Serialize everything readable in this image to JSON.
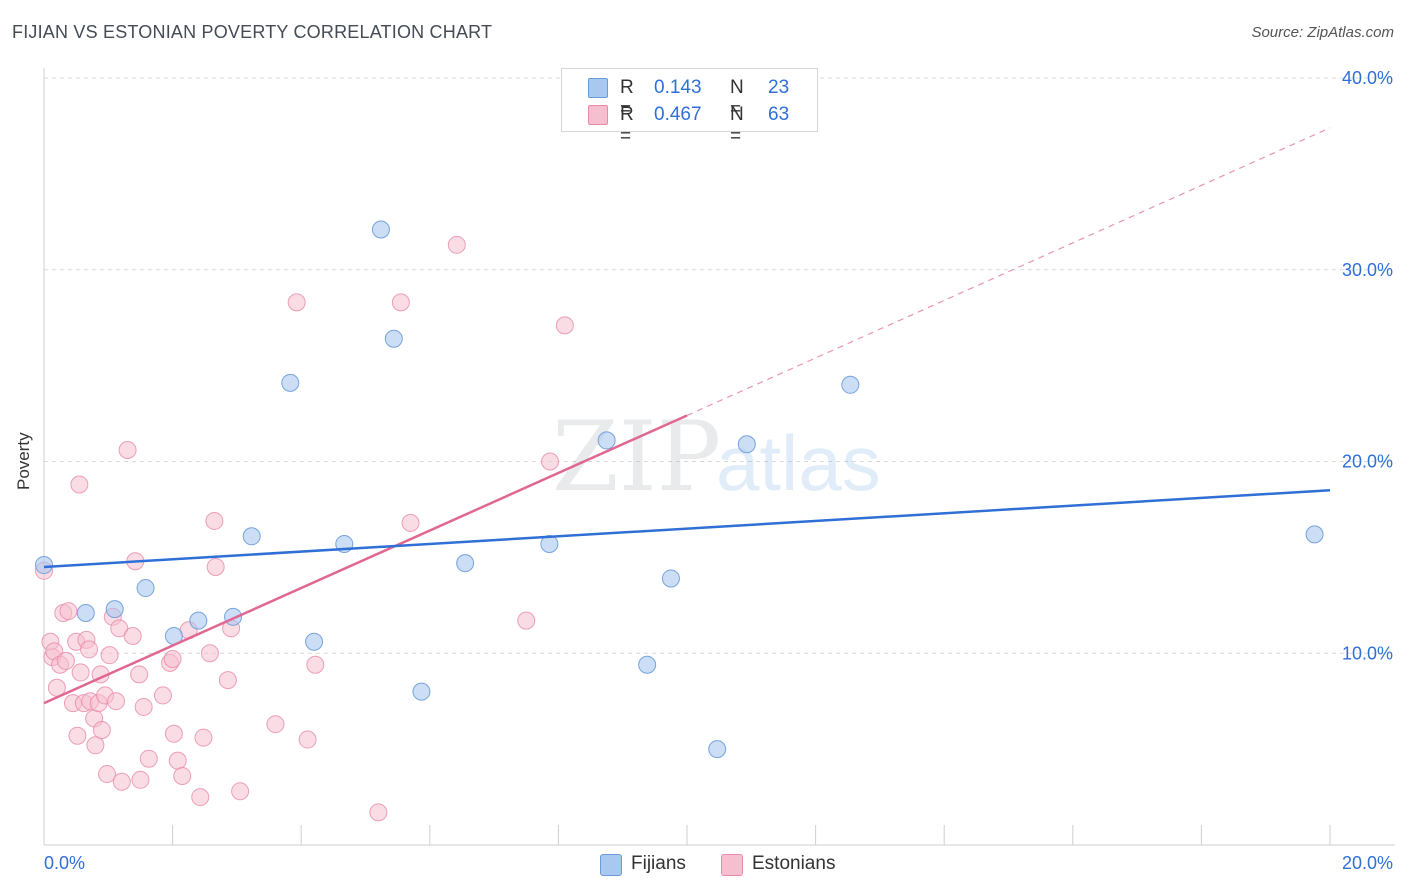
{
  "header": {
    "title": "FIJIAN VS ESTONIAN POVERTY CORRELATION CHART",
    "source": "Source: ZipAtlas.com"
  },
  "watermark": {
    "part1": "ZIP",
    "part2": "atlas"
  },
  "legend_top": {
    "rows": [
      {
        "r_label": "R =",
        "r_value": "0.143",
        "n_label": "N =",
        "n_value": "23"
      },
      {
        "r_label": "R =",
        "r_value": "0.467",
        "n_label": "N =",
        "n_value": "63"
      }
    ]
  },
  "legend_bottom": {
    "items": [
      {
        "label": "Fijians"
      },
      {
        "label": "Estonians"
      }
    ]
  },
  "colors": {
    "fijian_fill": "#a9c8f0",
    "fijian_stroke": "#6a9bd8",
    "fijian_line": "#2f6fd6",
    "estonian_fill": "#f6bfd0",
    "estonian_stroke": "#e98aa8",
    "estonian_line": "#e06792",
    "tick_text": "#2f6fd6",
    "grid": "#d9d9d9"
  },
  "chart_data": {
    "type": "scatter",
    "title": "FIJIAN VS ESTONIAN POVERTY CORRELATION CHART",
    "xlabel": "",
    "ylabel": "Poverty",
    "xlim": [
      0,
      20
    ],
    "ylim": [
      0,
      40
    ],
    "x_tick_labels": [
      "0.0%",
      "20.0%"
    ],
    "y_ticks": [
      10,
      20,
      30,
      40
    ],
    "y_tick_labels": [
      "10.0%",
      "20.0%",
      "30.0%",
      "40.0%"
    ],
    "grid": true,
    "legend_position": "top-center",
    "series": [
      {
        "name": "Fijians",
        "r": 0.143,
        "n": 23,
        "trend": {
          "x": [
            0,
            20
          ],
          "y": [
            14.5,
            18.5
          ],
          "style": "solid"
        },
        "points": [
          [
            0.0,
            14.6
          ],
          [
            0.65,
            12.1
          ],
          [
            1.1,
            12.3
          ],
          [
            1.58,
            13.4
          ],
          [
            2.02,
            10.9
          ],
          [
            2.4,
            11.7
          ],
          [
            2.94,
            11.9
          ],
          [
            3.23,
            16.1
          ],
          [
            3.83,
            24.1
          ],
          [
            4.2,
            10.6
          ],
          [
            4.67,
            15.7
          ],
          [
            5.24,
            32.1
          ],
          [
            5.44,
            26.4
          ],
          [
            5.87,
            8.0
          ],
          [
            6.55,
            14.7
          ],
          [
            7.86,
            15.7
          ],
          [
            8.75,
            21.1
          ],
          [
            9.38,
            9.4
          ],
          [
            9.75,
            13.9
          ],
          [
            10.47,
            5.0
          ],
          [
            10.93,
            20.9
          ],
          [
            12.54,
            24.0
          ],
          [
            19.76,
            16.2
          ]
        ]
      },
      {
        "name": "Estonians",
        "r": 0.467,
        "n": 63,
        "trend": {
          "x": [
            0,
            10.0
          ],
          "y": [
            7.4,
            22.4
          ],
          "style": "solid",
          "extension": {
            "x": [
              10.0,
              20.0
            ],
            "y": [
              22.4,
              37.4
            ],
            "style": "dashed"
          }
        },
        "points": [
          [
            0.0,
            14.3
          ],
          [
            0.1,
            10.6
          ],
          [
            0.13,
            9.8
          ],
          [
            0.16,
            10.1
          ],
          [
            0.2,
            8.2
          ],
          [
            0.25,
            9.4
          ],
          [
            0.3,
            12.1
          ],
          [
            0.34,
            9.6
          ],
          [
            0.38,
            12.2
          ],
          [
            0.45,
            7.4
          ],
          [
            0.5,
            10.6
          ],
          [
            0.52,
            5.7
          ],
          [
            0.55,
            18.8
          ],
          [
            0.57,
            9.0
          ],
          [
            0.62,
            7.4
          ],
          [
            0.66,
            10.7
          ],
          [
            0.7,
            10.2
          ],
          [
            0.72,
            7.5
          ],
          [
            0.78,
            6.6
          ],
          [
            0.8,
            5.2
          ],
          [
            0.85,
            7.4
          ],
          [
            0.88,
            8.9
          ],
          [
            0.9,
            6.0
          ],
          [
            0.95,
            7.8
          ],
          [
            0.98,
            3.7
          ],
          [
            1.02,
            9.9
          ],
          [
            1.07,
            11.9
          ],
          [
            1.12,
            7.5
          ],
          [
            1.17,
            11.3
          ],
          [
            1.21,
            3.3
          ],
          [
            1.3,
            20.6
          ],
          [
            1.38,
            10.9
          ],
          [
            1.42,
            14.8
          ],
          [
            1.48,
            8.9
          ],
          [
            1.5,
            3.4
          ],
          [
            1.55,
            7.2
          ],
          [
            1.63,
            4.5
          ],
          [
            1.85,
            7.8
          ],
          [
            1.96,
            9.5
          ],
          [
            2.0,
            9.7
          ],
          [
            2.02,
            5.8
          ],
          [
            2.08,
            4.4
          ],
          [
            2.15,
            3.6
          ],
          [
            2.25,
            11.2
          ],
          [
            2.43,
            2.5
          ],
          [
            2.48,
            5.6
          ],
          [
            2.58,
            10.0
          ],
          [
            2.65,
            16.9
          ],
          [
            2.67,
            14.5
          ],
          [
            2.86,
            8.6
          ],
          [
            2.91,
            11.3
          ],
          [
            3.05,
            2.8
          ],
          [
            3.6,
            6.3
          ],
          [
            3.93,
            28.3
          ],
          [
            4.1,
            5.5
          ],
          [
            4.22,
            9.4
          ],
          [
            5.2,
            1.7
          ],
          [
            5.55,
            28.3
          ],
          [
            5.7,
            16.8
          ],
          [
            6.42,
            31.3
          ],
          [
            7.5,
            11.7
          ],
          [
            8.1,
            27.1
          ],
          [
            7.87,
            20.0
          ]
        ]
      }
    ]
  }
}
